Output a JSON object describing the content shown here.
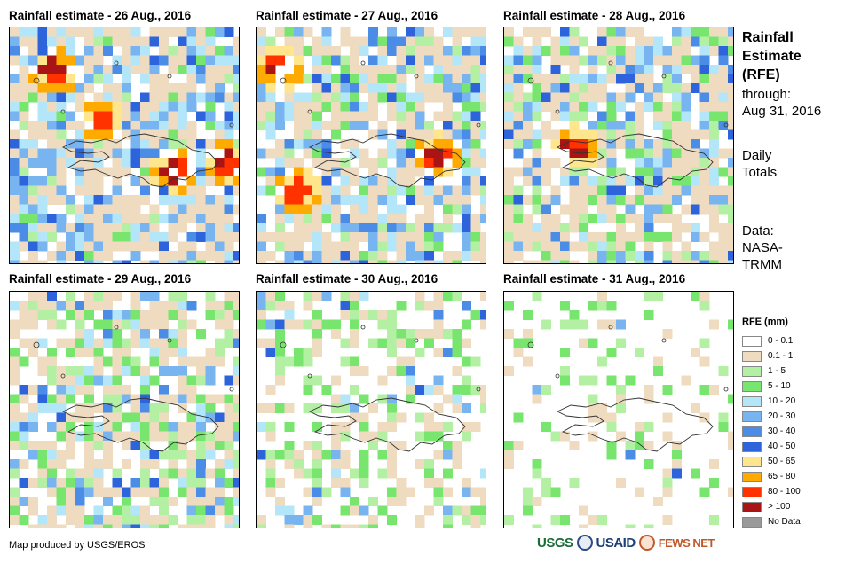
{
  "panels": [
    {
      "title": "Rainfall estimate - 26 Aug., 2016"
    },
    {
      "title": "Rainfall estimate - 27 Aug., 2016"
    },
    {
      "title": "Rainfall estimate - 28 Aug., 2016"
    },
    {
      "title": "Rainfall estimate - 29 Aug., 2016"
    },
    {
      "title": "Rainfall estimate - 30 Aug., 2016"
    },
    {
      "title": "Rainfall estimate - 31 Aug., 2016"
    }
  ],
  "sidebar": {
    "title_line1": "Rainfall",
    "title_line2": "Estimate",
    "title_line3": "(RFE)",
    "through": "through:",
    "date": "Aug 31, 2016",
    "daily1": "Daily",
    "daily2": "Totals",
    "data1": "Data:",
    "data2": "NASA-",
    "data3": "TRMM"
  },
  "legend": {
    "title": "RFE (mm)",
    "items": [
      {
        "label": "0 - 0.1",
        "color": "#ffffff"
      },
      {
        "label": "0.1 - 1",
        "color": "#efdcc0"
      },
      {
        "label": "1 - 5",
        "color": "#b4f0a4"
      },
      {
        "label": "5 - 10",
        "color": "#78e66e"
      },
      {
        "label": "10 - 20",
        "color": "#b4e6fa"
      },
      {
        "label": "20 - 30",
        "color": "#78b4f0"
      },
      {
        "label": "30 - 40",
        "color": "#4b8ce6"
      },
      {
        "label": "40 - 50",
        "color": "#2d64dc"
      },
      {
        "label": "50 - 65",
        "color": "#ffe68c"
      },
      {
        "label": "65 - 80",
        "color": "#ffaa00"
      },
      {
        "label": "80 - 100",
        "color": "#ff3200"
      },
      {
        "label": "> 100",
        "color": "#aa1414"
      },
      {
        "label": "No Data",
        "color": "#9a9a9a"
      }
    ]
  },
  "footer": {
    "credit": "Map produced by USGS/EROS"
  },
  "logos": {
    "usgs": "USGS",
    "usaid": "USAID",
    "fewsnet": "FEWS NET"
  }
}
